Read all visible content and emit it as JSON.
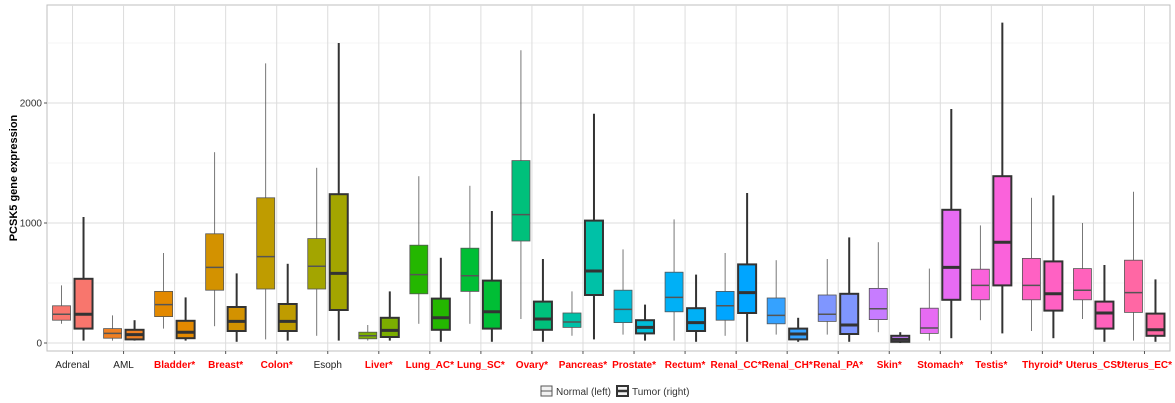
{
  "chart_data": {
    "type": "boxplot",
    "ylabel": "PCSK5 gene expression",
    "xlabel": "",
    "ylim": [
      -120,
      2800
    ],
    "yticks": [
      0,
      1000,
      2000
    ],
    "grid": true,
    "legend": {
      "position": "bottom",
      "entries": [
        {
          "label": "Normal (left)",
          "style": "light"
        },
        {
          "label": "Tumor (right)",
          "style": "bold"
        }
      ]
    },
    "highlight_color": "#ff0000",
    "categories": [
      {
        "label": "Adrenal",
        "highlight": false,
        "color": "#f8766d",
        "normal": {
          "min": 160,
          "q1": 190,
          "median": 240,
          "q3": 310,
          "max": 480
        },
        "tumor": {
          "min": 20,
          "q1": 120,
          "median": 240,
          "q3": 535,
          "max": 1050
        }
      },
      {
        "label": "AML",
        "highlight": false,
        "color": "#ef7f22",
        "normal": {
          "min": 20,
          "q1": 40,
          "median": 80,
          "q3": 120,
          "max": 230
        },
        "tumor": {
          "min": 20,
          "q1": 30,
          "median": 70,
          "q3": 110,
          "max": 190
        }
      },
      {
        "label": "Bladder*",
        "highlight": true,
        "color": "#e38900",
        "normal": {
          "min": 120,
          "q1": 220,
          "median": 320,
          "q3": 430,
          "max": 750
        },
        "tumor": {
          "min": 20,
          "q1": 40,
          "median": 90,
          "q3": 185,
          "max": 380
        }
      },
      {
        "label": "Breast*",
        "highlight": true,
        "color": "#d39200",
        "normal": {
          "min": 140,
          "q1": 440,
          "median": 630,
          "q3": 910,
          "max": 1590
        },
        "tumor": {
          "min": 10,
          "q1": 100,
          "median": 180,
          "q3": 300,
          "max": 580
        }
      },
      {
        "label": "Colon*",
        "highlight": true,
        "color": "#bf9c00",
        "normal": {
          "min": 30,
          "q1": 450,
          "median": 720,
          "q3": 1210,
          "max": 2330
        },
        "tumor": {
          "min": 20,
          "q1": 100,
          "median": 180,
          "q3": 325,
          "max": 660
        }
      },
      {
        "label": "Esoph",
        "highlight": false,
        "color": "#a3a500",
        "normal": {
          "min": 60,
          "q1": 450,
          "median": 640,
          "q3": 870,
          "max": 1460
        },
        "tumor": {
          "min": 20,
          "q1": 275,
          "median": 580,
          "q3": 1240,
          "max": 2500
        }
      },
      {
        "label": "Liver*",
        "highlight": true,
        "color": "#7cae00",
        "normal": {
          "min": 20,
          "q1": 35,
          "median": 60,
          "q3": 90,
          "max": 150
        },
        "tumor": {
          "min": 20,
          "q1": 50,
          "median": 105,
          "q3": 210,
          "max": 430
        }
      },
      {
        "label": "Lung_AC*",
        "highlight": true,
        "color": "#24b700",
        "normal": {
          "min": 160,
          "q1": 410,
          "median": 570,
          "q3": 815,
          "max": 1390
        },
        "tumor": {
          "min": 10,
          "q1": 110,
          "median": 210,
          "q3": 370,
          "max": 710
        }
      },
      {
        "label": "Lung_SC*",
        "highlight": true,
        "color": "#00be35",
        "normal": {
          "min": 160,
          "q1": 430,
          "median": 560,
          "q3": 790,
          "max": 1310
        },
        "tumor": {
          "min": 10,
          "q1": 120,
          "median": 260,
          "q3": 520,
          "max": 1100
        }
      },
      {
        "label": "Ovary*",
        "highlight": true,
        "color": "#00c07b",
        "normal": {
          "min": 200,
          "q1": 850,
          "median": 1070,
          "q3": 1520,
          "max": 2440
        },
        "tumor": {
          "min": 10,
          "q1": 110,
          "median": 200,
          "q3": 345,
          "max": 700
        }
      },
      {
        "label": "Pancreas*",
        "highlight": true,
        "color": "#00c1a7",
        "normal": {
          "min": 60,
          "q1": 130,
          "median": 175,
          "q3": 250,
          "max": 430
        },
        "tumor": {
          "min": 30,
          "q1": 400,
          "median": 600,
          "q3": 1020,
          "max": 1910
        }
      },
      {
        "label": "Prostate*",
        "highlight": true,
        "color": "#00bcd8",
        "normal": {
          "min": 70,
          "q1": 170,
          "median": 280,
          "q3": 440,
          "max": 780
        },
        "tumor": {
          "min": 20,
          "q1": 80,
          "median": 130,
          "q3": 190,
          "max": 320
        }
      },
      {
        "label": "Rectum*",
        "highlight": true,
        "color": "#00b0f6",
        "normal": {
          "min": 20,
          "q1": 260,
          "median": 380,
          "q3": 590,
          "max": 1030
        },
        "tumor": {
          "min": 10,
          "q1": 100,
          "median": 170,
          "q3": 290,
          "max": 570
        }
      },
      {
        "label": "Renal_CC*",
        "highlight": true,
        "color": "#00a5ff",
        "normal": {
          "min": 60,
          "q1": 190,
          "median": 310,
          "q3": 430,
          "max": 750
        },
        "tumor": {
          "min": 10,
          "q1": 250,
          "median": 420,
          "q3": 655,
          "max": 1250
        }
      },
      {
        "label": "Renal_CH*",
        "highlight": true,
        "color": "#35a2ff",
        "normal": {
          "min": 70,
          "q1": 160,
          "median": 230,
          "q3": 375,
          "max": 690
        },
        "tumor": {
          "min": 10,
          "q1": 30,
          "median": 75,
          "q3": 120,
          "max": 210
        }
      },
      {
        "label": "Renal_PA*",
        "highlight": true,
        "color": "#7f96ff",
        "normal": {
          "min": 70,
          "q1": 180,
          "median": 240,
          "q3": 400,
          "max": 700
        },
        "tumor": {
          "min": 10,
          "q1": 75,
          "median": 150,
          "q3": 410,
          "max": 880
        }
      },
      {
        "label": "Skin*",
        "highlight": true,
        "color": "#c77cff",
        "normal": {
          "min": 90,
          "q1": 195,
          "median": 285,
          "q3": 455,
          "max": 840
        },
        "tumor": {
          "min": 0,
          "q1": 10,
          "median": 30,
          "q3": 60,
          "max": 90
        }
      },
      {
        "label": "Stomach*",
        "highlight": true,
        "color": "#e76bf3",
        "normal": {
          "min": 20,
          "q1": 80,
          "median": 125,
          "q3": 290,
          "max": 620
        },
        "tumor": {
          "min": 40,
          "q1": 360,
          "median": 630,
          "q3": 1110,
          "max": 1950
        }
      },
      {
        "label": "Testis*",
        "highlight": true,
        "color": "#fa62db",
        "normal": {
          "min": 190,
          "q1": 360,
          "median": 480,
          "q3": 615,
          "max": 980
        },
        "tumor": {
          "min": 80,
          "q1": 480,
          "median": 840,
          "q3": 1390,
          "max": 2670
        }
      },
      {
        "label": "Thyroid*",
        "highlight": true,
        "color": "#ff61c3",
        "normal": {
          "min": 100,
          "q1": 360,
          "median": 480,
          "q3": 705,
          "max": 1210
        },
        "tumor": {
          "min": 40,
          "q1": 270,
          "median": 410,
          "q3": 680,
          "max": 1230
        }
      },
      {
        "label": "Uterus_CS*",
        "highlight": true,
        "color": "#ff62bc",
        "normal": {
          "min": 200,
          "q1": 360,
          "median": 440,
          "q3": 620,
          "max": 1000
        },
        "tumor": {
          "min": 10,
          "q1": 120,
          "median": 250,
          "q3": 345,
          "max": 650
        }
      },
      {
        "label": "Uterus_EC*",
        "highlight": true,
        "color": "#ff67a4",
        "normal": {
          "min": 20,
          "q1": 255,
          "median": 420,
          "q3": 690,
          "max": 1260
        },
        "tumor": {
          "min": 10,
          "q1": 60,
          "median": 110,
          "q3": 245,
          "max": 530
        }
      }
    ]
  }
}
